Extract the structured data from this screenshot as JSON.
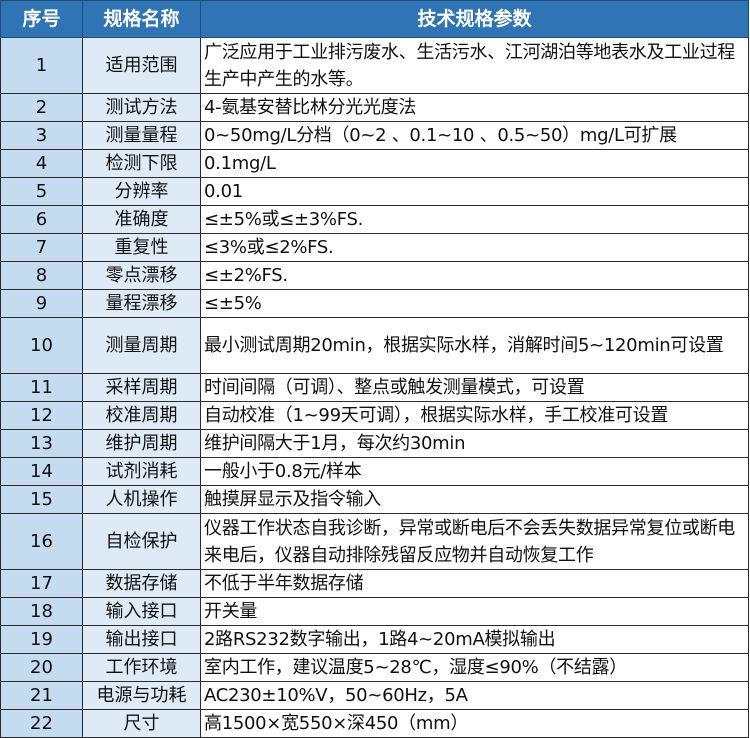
{
  "headers": {
    "no": "序号",
    "name": "规格名称",
    "value": "技术规格参数"
  },
  "colors": {
    "header_bg": "#2f74b5",
    "no_col_bg": "#c5dcf0",
    "name_col_bg": "#deebf7"
  },
  "rows": [
    {
      "no": "1",
      "name": "适用范围",
      "value": "广泛应用于工业排污废水、生活污水、江河湖泊等地表水及工业过程生产中产生的水等。"
    },
    {
      "no": "2",
      "name": "测试方法",
      "value": "4-氨基安替比林分光光度法"
    },
    {
      "no": "3",
      "name": "测量量程",
      "value": "0~50mg/L分档（0~2 、0.1~10 、0.5~50）mg/L可扩展"
    },
    {
      "no": "4",
      "name": "检测下限",
      "value": "0.1mg/L"
    },
    {
      "no": "5",
      "name": "分辨率",
      "value": "0.01"
    },
    {
      "no": "6",
      "name": "准确度",
      "value": "≤±5%或≤±3%FS."
    },
    {
      "no": "7",
      "name": "重复性",
      "value": "≤3%或≤2%FS."
    },
    {
      "no": "8",
      "name": "零点漂移",
      "value": "≤±2%FS."
    },
    {
      "no": "9",
      "name": "量程漂移",
      "value": "≤±5%"
    },
    {
      "no": "10",
      "name": "测量周期",
      "value": "最小测试周期20min，根据实际水样，消解时间5~120min可设置"
    },
    {
      "no": "11",
      "name": "采样周期",
      "value": "时间间隔（可调）、整点或触发测量模式，可设置"
    },
    {
      "no": "12",
      "name": "校准周期",
      "value": "自动校准（1~99天可调），根据实际水样，手工校准可设置"
    },
    {
      "no": "13",
      "name": "维护周期",
      "value": "维护间隔大于1月，每次约30min"
    },
    {
      "no": "14",
      "name": "试剂消耗",
      "value": "一般小于0.8元/样本"
    },
    {
      "no": "15",
      "name": "人机操作",
      "value": "触摸屏显示及指令输入"
    },
    {
      "no": "16",
      "name": "自检保护",
      "value": "仪器工作状态自我诊断，异常或断电后不会丢失数据异常复位或断电来电后，仪器自动排除残留反应物并自动恢复工作"
    },
    {
      "no": "17",
      "name": "数据存储",
      "value": "不低于半年数据存储"
    },
    {
      "no": "18",
      "name": "输入接口",
      "value": "开关量"
    },
    {
      "no": "19",
      "name": "输出接口",
      "value": "2路RS232数字输出，1路4~20mA模拟输出"
    },
    {
      "no": "20",
      "name": "工作环境",
      "value": "室内工作，建议温度5~28℃，湿度≤90%（不结露）"
    },
    {
      "no": "21",
      "name": "电源与功耗",
      "value": "AC230±10%V，50~60Hz，5A"
    },
    {
      "no": "22",
      "name": "尺寸",
      "value": "高1500×宽550×深450（mm）"
    }
  ]
}
